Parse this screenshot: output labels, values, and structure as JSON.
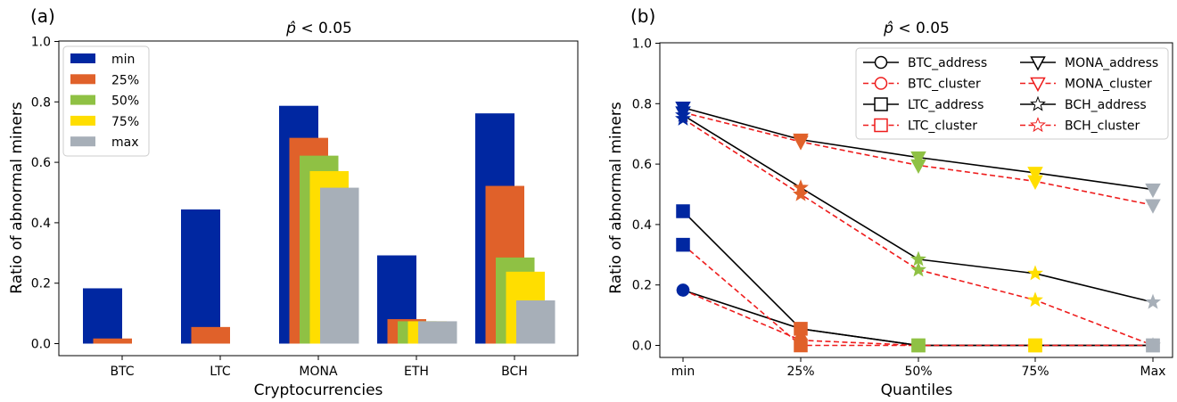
{
  "panel_a_label": "(a)",
  "panel_b_label": "(b)",
  "colors": {
    "min": "#0027a1",
    "25%": "#e0612a",
    "50%": "#8fc144",
    "75%": "#ffde00",
    "max": "#a7afb8",
    "black": "#000000",
    "red": "#ee1c1c"
  },
  "chart_data": [
    {
      "type": "bar",
      "title": "p̂ < 0.05",
      "xlabel": "Cryptocurrencies",
      "ylabel": "Ratio of abnormal miners",
      "ylim": [
        0,
        1.0
      ],
      "yticks": [
        "0.0",
        "0.2",
        "0.4",
        "0.6",
        "0.8",
        "1.0"
      ],
      "categories": [
        "BTC",
        "LTC",
        "MONA",
        "ETH",
        "BCH"
      ],
      "series": [
        {
          "name": "min",
          "values": [
            0.183,
            0.444,
            0.787,
            0.292,
            0.762
          ]
        },
        {
          "name": "25%",
          "values": [
            0.017,
            0.055,
            0.681,
            0.081,
            0.522
          ]
        },
        {
          "name": "50%",
          "values": [
            0.0,
            0.0,
            0.622,
            0.074,
            0.285
          ]
        },
        {
          "name": "75%",
          "values": [
            0.0,
            0.0,
            0.571,
            0.074,
            0.238
          ]
        },
        {
          "name": "max",
          "values": [
            0.0,
            0.0,
            0.516,
            0.074,
            0.143
          ]
        }
      ],
      "legend_position": "top-left",
      "grid": false
    },
    {
      "type": "line",
      "title": "p̂ < 0.05",
      "xlabel": "Quantiles",
      "ylabel": "Ratio of abnormal miners",
      "ylim": [
        0,
        1.0
      ],
      "yticks": [
        "0.0",
        "0.2",
        "0.4",
        "0.6",
        "0.8",
        "1.0"
      ],
      "categories": [
        "min",
        "25%",
        "50%",
        "75%",
        "Max"
      ],
      "series": [
        {
          "name": "BTC_address",
          "style": "solid",
          "marker": "circle",
          "values": [
            0.183,
            0.055,
            0.0,
            0.0,
            0.0
          ]
        },
        {
          "name": "BTC_cluster",
          "style": "dashed",
          "marker": "circle",
          "values": [
            0.183,
            0.017,
            0.0,
            0.0,
            0.0
          ]
        },
        {
          "name": "LTC_address",
          "style": "solid",
          "marker": "square",
          "values": [
            0.444,
            0.055,
            0.0,
            0.0,
            0.0
          ]
        },
        {
          "name": "LTC_cluster",
          "style": "dashed",
          "marker": "square",
          "values": [
            0.333,
            0.0,
            0.0,
            0.0,
            0.0
          ]
        },
        {
          "name": "MONA_address",
          "style": "solid",
          "marker": "triangle-down",
          "values": [
            0.787,
            0.681,
            0.622,
            0.571,
            0.516
          ]
        },
        {
          "name": "MONA_cluster",
          "style": "dashed",
          "marker": "triangle-down",
          "values": [
            0.771,
            0.674,
            0.596,
            0.543,
            0.464
          ]
        },
        {
          "name": "BCH_address",
          "style": "solid",
          "marker": "star",
          "values": [
            0.762,
            0.522,
            0.285,
            0.238,
            0.143
          ]
        },
        {
          "name": "BCH_cluster",
          "style": "dashed",
          "marker": "star",
          "values": [
            0.75,
            0.5,
            0.25,
            0.15,
            0.0
          ]
        }
      ],
      "legend_position": "top-right",
      "grid": false
    }
  ]
}
